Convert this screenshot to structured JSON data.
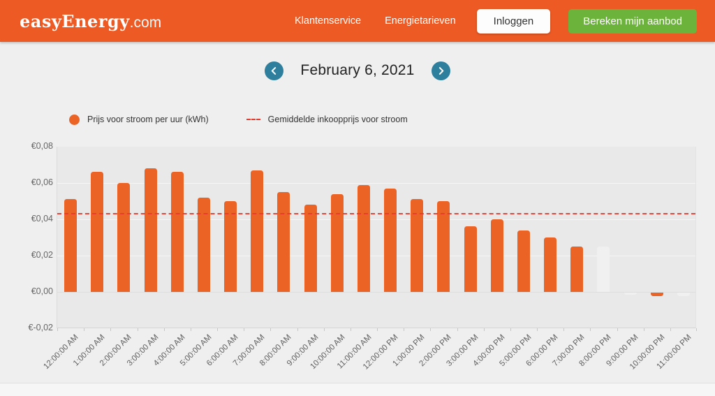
{
  "header": {
    "logo_main": "easyEnergy",
    "logo_suffix": ".com",
    "nav": [
      {
        "label": "Klantenservice"
      },
      {
        "label": "Energietarieven"
      }
    ],
    "login_label": "Inloggen",
    "offer_label": "Bereken mijn aanbod"
  },
  "date_nav": {
    "title": "February 6, 2021"
  },
  "legend": {
    "price_label": "Prijs voor stroom per uur (kWh)",
    "average_label": "Gemiddelde inkoopprijs voor stroom"
  },
  "colors": {
    "brand_orange": "#EE5A24",
    "bar_orange": "#EC6425",
    "muted_bar": "#F0F0F0",
    "average_red": "#E63A2E",
    "teal": "#2E7F9E",
    "green": "#6CB33B"
  },
  "chart_data": {
    "type": "bar",
    "title": "",
    "xlabel": "",
    "ylabel": "",
    "categories": [
      "12:00:00 AM",
      "1:00:00 AM",
      "2:00:00 AM",
      "3:00:00 AM",
      "4:00:00 AM",
      "5:00:00 AM",
      "6:00:00 AM",
      "7:00:00 AM",
      "8:00:00 AM",
      "9:00:00 AM",
      "10:00:00 AM",
      "11:00:00 AM",
      "12:00:00 PM",
      "1:00:00 PM",
      "2:00:00 PM",
      "3:00:00 PM",
      "4:00:00 PM",
      "5:00:00 PM",
      "6:00:00 PM",
      "7:00:00 PM",
      "8:00:00 PM",
      "9:00:00 PM",
      "10:00:00 PM",
      "11:00:00 PM"
    ],
    "series": [
      {
        "name": "Prijs voor stroom per uur (kWh)",
        "values": [
          0.051,
          0.066,
          0.06,
          0.068,
          0.066,
          0.052,
          0.05,
          0.067,
          0.055,
          0.048,
          0.054,
          0.059,
          0.057,
          0.051,
          0.05,
          0.036,
          0.04,
          0.034,
          0.03,
          0.025,
          0.025,
          -0.001,
          -0.002,
          -0.002
        ]
      }
    ],
    "muted_bar_indices": [
      20,
      21,
      23
    ],
    "average_line": {
      "name": "Gemiddelde inkoopprijs voor stroom",
      "value": 0.0435
    },
    "ylim": [
      -0.02,
      0.08
    ],
    "y_ticks": [
      0.08,
      0.06,
      0.04,
      0.02,
      0,
      -0.02
    ],
    "y_tick_labels": [
      "€0,08",
      "€0,06",
      "€0,04",
      "€0,02",
      "€0,00",
      "€-0,02"
    ],
    "grid": true,
    "legend_position": "top-left",
    "currency": "EUR"
  }
}
